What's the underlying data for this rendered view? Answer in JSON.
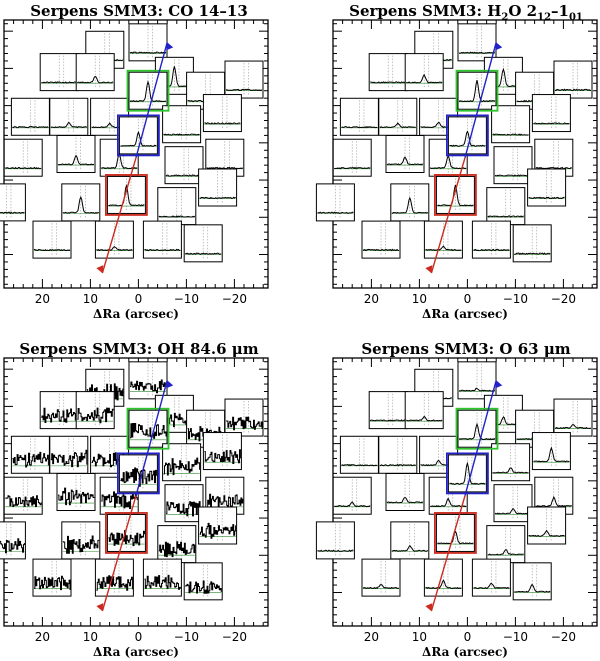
{
  "figure": {
    "xlabel": "ΔRa (arcsec)",
    "x_ticks": [
      20,
      10,
      0,
      -10,
      -20
    ],
    "x_range": [
      28,
      -27
    ]
  },
  "colors": {
    "red": "#cc2a1e",
    "green": "#2ec42e",
    "blue": "#2222c8",
    "spectrum": "#000000",
    "guide": "#9a9a9a",
    "baseline": "#2e8b2e"
  },
  "chart_data": [
    {
      "type": "spectral-map",
      "title": "Serpens SMM3: CO 14-13",
      "title_main": "Serpens SMM3: CO 14–13",
      "xlabel": "ΔRa (arcsec)",
      "spaxels": [
        {
          "id": 1,
          "ra": 7.0,
          "dec": 35,
          "profile": "flat",
          "peak": 0
        },
        {
          "id": 2,
          "ra": -2.0,
          "dec": 37,
          "profile": "flat",
          "peak": 0
        },
        {
          "id": 3,
          "ra": 16.5,
          "dec": 29,
          "profile": "flat",
          "peak": 0
        },
        {
          "id": 4,
          "ra": 9.0,
          "dec": 29,
          "profile": "narrow",
          "peak": 0.25
        },
        {
          "id": 5,
          "ra": -7.5,
          "dec": 28,
          "profile": "narrow",
          "peak": 0.8
        },
        {
          "id": 6,
          "ra": -14.0,
          "dec": 24,
          "profile": "flat",
          "peak": 0
        },
        {
          "id": 7,
          "ra": -22.0,
          "dec": 27,
          "profile": "flat",
          "peak": 0
        },
        {
          "id": 8,
          "ra": 22.5,
          "dec": 17,
          "profile": "flat",
          "peak": 0
        },
        {
          "id": 9,
          "ra": 14.5,
          "dec": 17,
          "profile": "narrow",
          "peak": 0.2
        },
        {
          "id": 10,
          "ra": 6.0,
          "dec": 17,
          "profile": "narrow",
          "peak": 0.15
        },
        {
          "id": 11,
          "ra": -2.0,
          "dec": 24,
          "profile": "narrow",
          "peak": 0.8
        },
        {
          "id": 12,
          "ra": -9.0,
          "dec": 15,
          "profile": "flat",
          "peak": 0
        },
        {
          "id": 13,
          "ra": -17.5,
          "dec": 18,
          "profile": "flat",
          "peak": 0
        },
        {
          "id": 14,
          "ra": 24.0,
          "dec": 6,
          "profile": "flat",
          "peak": 0
        },
        {
          "id": 15,
          "ra": 13.0,
          "dec": 7,
          "profile": "narrow",
          "peak": 0.35
        },
        {
          "id": 16,
          "ra": 4.0,
          "dec": 6,
          "profile": "narrow",
          "peak": 0.6
        },
        {
          "id": 17,
          "ra": 0.0,
          "dec": 12,
          "profile": "narrow",
          "peak": 0.55
        },
        {
          "id": 18,
          "ra": -9.5,
          "dec": 4,
          "profile": "flat",
          "peak": 0
        },
        {
          "id": 19,
          "ra": -18.0,
          "dec": 6,
          "profile": "flat",
          "peak": 0
        },
        {
          "id": 20,
          "ra": 27.5,
          "dec": -6,
          "profile": "flat",
          "peak": 0
        },
        {
          "id": 21,
          "ra": 12.0,
          "dec": -6,
          "profile": "narrow",
          "peak": 0.65
        },
        {
          "id": 22,
          "ra": 2.5,
          "dec": -4,
          "profile": "narrow",
          "peak": 0.8
        },
        {
          "id": 23,
          "ra": -8.0,
          "dec": -7,
          "profile": "flat",
          "peak": 0
        },
        {
          "id": 24,
          "ra": -16.5,
          "dec": -2,
          "profile": "flat",
          "peak": 0
        },
        {
          "id": 25,
          "ra": 18.0,
          "dec": -16,
          "profile": "flat",
          "peak": 0
        },
        {
          "id": 26,
          "ra": 5.0,
          "dec": -16,
          "profile": "narrow",
          "peak": 0.15
        },
        {
          "id": 27,
          "ra": -5.0,
          "dec": -16,
          "profile": "flat",
          "peak": 0
        },
        {
          "id": 28,
          "ra": -13.5,
          "dec": -17,
          "profile": "flat",
          "peak": 0
        }
      ],
      "highlight": {
        "blue": 17,
        "green": 11,
        "red": 22
      }
    },
    {
      "type": "spectral-map",
      "title": "Serpens SMM3: H2O 212-101",
      "title_parts": [
        "Serpens SMM3: H",
        "2",
        "O 2",
        "12",
        "–1",
        "01"
      ],
      "xlabel": "ΔRa (arcsec)",
      "spaxels": [
        {
          "id": 1,
          "ra": 7.0,
          "dec": 35,
          "profile": "flat",
          "peak": 0
        },
        {
          "id": 2,
          "ra": -2.0,
          "dec": 37,
          "profile": "flat",
          "peak": 0
        },
        {
          "id": 3,
          "ra": 16.5,
          "dec": 29,
          "profile": "flat",
          "peak": 0
        },
        {
          "id": 4,
          "ra": 9.0,
          "dec": 29,
          "profile": "narrow",
          "peak": 0.3
        },
        {
          "id": 5,
          "ra": -7.5,
          "dec": 28,
          "profile": "narrow",
          "peak": 0.7
        },
        {
          "id": 6,
          "ra": -14.0,
          "dec": 24,
          "profile": "flat",
          "peak": 0
        },
        {
          "id": 7,
          "ra": -22.0,
          "dec": 27,
          "profile": "flat",
          "peak": 0
        },
        {
          "id": 8,
          "ra": 22.5,
          "dec": 17,
          "profile": "flat",
          "peak": 0
        },
        {
          "id": 9,
          "ra": 14.5,
          "dec": 17,
          "profile": "narrow",
          "peak": 0.15
        },
        {
          "id": 10,
          "ra": 6.0,
          "dec": 17,
          "profile": "narrow",
          "peak": 0.2
        },
        {
          "id": 11,
          "ra": -2.0,
          "dec": 24,
          "profile": "narrow",
          "peak": 0.85
        },
        {
          "id": 12,
          "ra": -9.0,
          "dec": 15,
          "profile": "flat",
          "peak": 0
        },
        {
          "id": 13,
          "ra": -17.5,
          "dec": 18,
          "profile": "flat",
          "peak": 0
        },
        {
          "id": 14,
          "ra": 24.0,
          "dec": 6,
          "profile": "flat",
          "peak": 0
        },
        {
          "id": 15,
          "ra": 13.0,
          "dec": 7,
          "profile": "narrow",
          "peak": 0.3
        },
        {
          "id": 16,
          "ra": 4.0,
          "dec": 6,
          "profile": "narrow",
          "peak": 0.5
        },
        {
          "id": 17,
          "ra": 0.0,
          "dec": 12,
          "profile": "narrow",
          "peak": 0.6
        },
        {
          "id": 18,
          "ra": -9.5,
          "dec": 4,
          "profile": "flat",
          "peak": 0
        },
        {
          "id": 19,
          "ra": -18.0,
          "dec": 6,
          "profile": "flat",
          "peak": 0
        },
        {
          "id": 20,
          "ra": 27.5,
          "dec": -6,
          "profile": "flat",
          "peak": 0
        },
        {
          "id": 21,
          "ra": 12.0,
          "dec": -6,
          "profile": "narrow",
          "peak": 0.6
        },
        {
          "id": 22,
          "ra": 2.5,
          "dec": -4,
          "profile": "narrow",
          "peak": 0.85
        },
        {
          "id": 23,
          "ra": -8.0,
          "dec": -7,
          "profile": "flat",
          "peak": 0
        },
        {
          "id": 24,
          "ra": -16.5,
          "dec": -2,
          "profile": "flat",
          "peak": 0
        },
        {
          "id": 25,
          "ra": 18.0,
          "dec": -16,
          "profile": "flat",
          "peak": 0
        },
        {
          "id": 26,
          "ra": 5.0,
          "dec": -16,
          "profile": "narrow",
          "peak": 0.15
        },
        {
          "id": 27,
          "ra": -5.0,
          "dec": -16,
          "profile": "flat",
          "peak": 0
        },
        {
          "id": 28,
          "ra": -13.5,
          "dec": -17,
          "profile": "flat",
          "peak": 0
        }
      ],
      "highlight": {
        "blue": 17,
        "green": 11,
        "red": 22
      }
    },
    {
      "type": "spectral-map",
      "title": "Serpens SMM3: OH 84.6 μm",
      "title_main": "Serpens SMM3: OH 84.6 μm",
      "xlabel": "ΔRa (arcsec)",
      "spaxels": [
        {
          "id": 1,
          "ra": 7.0,
          "dec": 35,
          "profile": "noisy",
          "peak": 0.7
        },
        {
          "id": 2,
          "ra": -2.0,
          "dec": 37,
          "profile": "noisy",
          "peak": 0.5
        },
        {
          "id": 3,
          "ra": 16.5,
          "dec": 29,
          "profile": "noisy",
          "peak": 0.6
        },
        {
          "id": 4,
          "ra": 9.0,
          "dec": 29,
          "profile": "noisy",
          "peak": 0.6
        },
        {
          "id": 5,
          "ra": -7.5,
          "dec": 28,
          "profile": "noisy",
          "peak": 0.6
        },
        {
          "id": 6,
          "ra": -14.0,
          "dec": 24,
          "profile": "noisy",
          "peak": 0.6
        },
        {
          "id": 7,
          "ra": -22.0,
          "dec": 27,
          "profile": "noisy",
          "peak": 0.5
        },
        {
          "id": 8,
          "ra": 22.5,
          "dec": 17,
          "profile": "noisy",
          "peak": 0.6
        },
        {
          "id": 9,
          "ra": 14.5,
          "dec": 17,
          "profile": "noisy",
          "peak": 0.7
        },
        {
          "id": 10,
          "ra": 6.0,
          "dec": 17,
          "profile": "noisy",
          "peak": 0.6
        },
        {
          "id": 11,
          "ra": -2.0,
          "dec": 24,
          "profile": "noisy",
          "peak": 0.8
        },
        {
          "id": 12,
          "ra": -9.0,
          "dec": 15,
          "profile": "noisy",
          "peak": 0.7
        },
        {
          "id": 13,
          "ra": -17.5,
          "dec": 18,
          "profile": "noisy",
          "peak": 0.6
        },
        {
          "id": 14,
          "ra": 24.0,
          "dec": 6,
          "profile": "noisy",
          "peak": 0.6
        },
        {
          "id": 15,
          "ra": 13.0,
          "dec": 7,
          "profile": "noisy",
          "peak": 0.7
        },
        {
          "id": 16,
          "ra": 4.0,
          "dec": 6,
          "profile": "noisy",
          "peak": 0.7
        },
        {
          "id": 17,
          "ra": 0.0,
          "dec": 12,
          "profile": "noisy",
          "peak": 0.8
        },
        {
          "id": 18,
          "ra": -9.5,
          "dec": 4,
          "profile": "noisy",
          "peak": 0.6
        },
        {
          "id": 19,
          "ra": -18.0,
          "dec": 6,
          "profile": "noisy",
          "peak": 0.6
        },
        {
          "id": 20,
          "ra": 27.5,
          "dec": -6,
          "profile": "noisy",
          "peak": 0.6
        },
        {
          "id": 21,
          "ra": 12.0,
          "dec": -6,
          "profile": "noisy",
          "peak": 0.7
        },
        {
          "id": 22,
          "ra": 2.5,
          "dec": -4,
          "profile": "noisy",
          "peak": 0.6
        },
        {
          "id": 23,
          "ra": -8.0,
          "dec": -7,
          "profile": "noisy",
          "peak": 0.6
        },
        {
          "id": 24,
          "ra": -16.5,
          "dec": -2,
          "profile": "noisy",
          "peak": 0.6
        },
        {
          "id": 25,
          "ra": 18.0,
          "dec": -16,
          "profile": "noisy",
          "peak": 0.6
        },
        {
          "id": 26,
          "ra": 5.0,
          "dec": -16,
          "profile": "noisy",
          "peak": 0.6
        },
        {
          "id": 27,
          "ra": -5.0,
          "dec": -16,
          "profile": "noisy",
          "peak": 0.6
        },
        {
          "id": 28,
          "ra": -13.5,
          "dec": -17,
          "profile": "noisy",
          "peak": 0.5
        }
      ],
      "highlight": {
        "blue": 17,
        "green": 11,
        "red": 22
      }
    },
    {
      "type": "spectral-map",
      "title": "Serpens SMM3: O 63 μm",
      "title_main": "Serpens SMM3: O 63 μm",
      "xlabel": "ΔRa (arcsec)",
      "spaxels": [
        {
          "id": 1,
          "ra": 7.0,
          "dec": 35,
          "profile": "narrow",
          "peak": 0.1
        },
        {
          "id": 2,
          "ra": -2.0,
          "dec": 37,
          "profile": "narrow",
          "peak": 0.1
        },
        {
          "id": 3,
          "ra": 16.5,
          "dec": 29,
          "profile": "flat",
          "peak": 0
        },
        {
          "id": 4,
          "ra": 9.0,
          "dec": 29,
          "profile": "narrow",
          "peak": 0.15
        },
        {
          "id": 5,
          "ra": -7.5,
          "dec": 28,
          "profile": "narrow",
          "peak": 0.3
        },
        {
          "id": 6,
          "ra": -14.0,
          "dec": 24,
          "profile": "narrow",
          "peak": 0.15
        },
        {
          "id": 7,
          "ra": -22.0,
          "dec": 27,
          "profile": "narrow",
          "peak": 0.15
        },
        {
          "id": 8,
          "ra": 22.5,
          "dec": 17,
          "profile": "flat",
          "peak": 0
        },
        {
          "id": 9,
          "ra": 14.5,
          "dec": 17,
          "profile": "flat",
          "peak": 0
        },
        {
          "id": 10,
          "ra": 6.0,
          "dec": 17,
          "profile": "narrow",
          "peak": 0.2
        },
        {
          "id": 11,
          "ra": -2.0,
          "dec": 24,
          "profile": "narrow",
          "peak": 0.6
        },
        {
          "id": 12,
          "ra": -9.0,
          "dec": 15,
          "profile": "narrow",
          "peak": 0.2
        },
        {
          "id": 13,
          "ra": -17.5,
          "dec": 18,
          "profile": "narrow",
          "peak": 0.55
        },
        {
          "id": 14,
          "ra": 24.0,
          "dec": 6,
          "profile": "narrow",
          "peak": 0.15
        },
        {
          "id": 15,
          "ra": 13.0,
          "dec": 7,
          "profile": "narrow",
          "peak": 0.2
        },
        {
          "id": 16,
          "ra": 4.0,
          "dec": 6,
          "profile": "narrow",
          "peak": 0.3
        },
        {
          "id": 17,
          "ra": 0.0,
          "dec": 12,
          "profile": "narrow",
          "peak": 0.85
        },
        {
          "id": 18,
          "ra": -9.5,
          "dec": 4,
          "profile": "narrow",
          "peak": 0.2
        },
        {
          "id": 19,
          "ra": -18.0,
          "dec": 6,
          "profile": "narrow",
          "peak": 0.35
        },
        {
          "id": 20,
          "ra": 27.5,
          "dec": -6,
          "profile": "flat",
          "peak": 0
        },
        {
          "id": 21,
          "ra": 12.0,
          "dec": -6,
          "profile": "narrow",
          "peak": 0.2
        },
        {
          "id": 22,
          "ra": 2.5,
          "dec": -4,
          "profile": "narrow",
          "peak": 0.5
        },
        {
          "id": 23,
          "ra": -8.0,
          "dec": -7,
          "profile": "narrow",
          "peak": 0.2
        },
        {
          "id": 24,
          "ra": -16.5,
          "dec": -2,
          "profile": "narrow",
          "peak": 0.2
        },
        {
          "id": 25,
          "ra": 18.0,
          "dec": -16,
          "profile": "narrow",
          "peak": 0.15
        },
        {
          "id": 26,
          "ra": 5.0,
          "dec": -16,
          "profile": "narrow",
          "peak": 0.3
        },
        {
          "id": 27,
          "ra": -5.0,
          "dec": -16,
          "profile": "narrow",
          "peak": 0.2
        },
        {
          "id": 28,
          "ra": -13.5,
          "dec": -17,
          "profile": "narrow",
          "peak": 0.3
        }
      ],
      "highlight": {
        "blue": 17,
        "green": 11,
        "red": 22
      }
    }
  ]
}
